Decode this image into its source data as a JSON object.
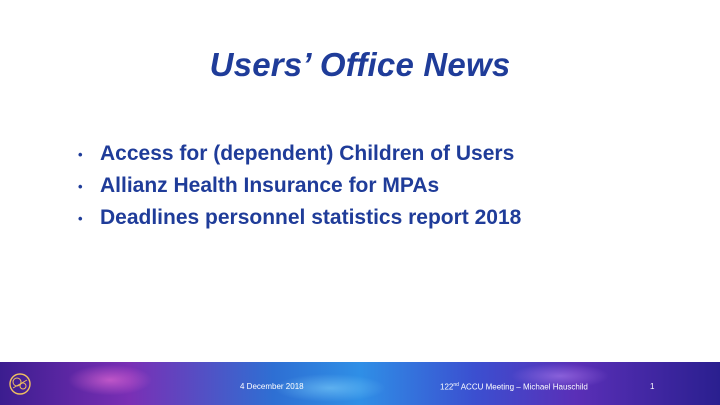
{
  "slide": {
    "title": "Users’ Office News",
    "bullets": [
      "Access for (dependent) Children of Users",
      "Allianz Health Insurance for MPAs",
      "Deadlines personnel statistics report 2018"
    ],
    "bullet_symbol": "•"
  },
  "footer": {
    "date": "4 December 2018",
    "meeting_number": "122",
    "meeting_suffix": "nd",
    "meeting_text": " ACCU Meeting – Michael Hauschild",
    "page_number": "1"
  },
  "colors": {
    "title": "#1f3c99",
    "text": "#1f3c99",
    "footer_text": "#ffffff"
  },
  "icons": {
    "logo": "cern-logo-icon"
  }
}
